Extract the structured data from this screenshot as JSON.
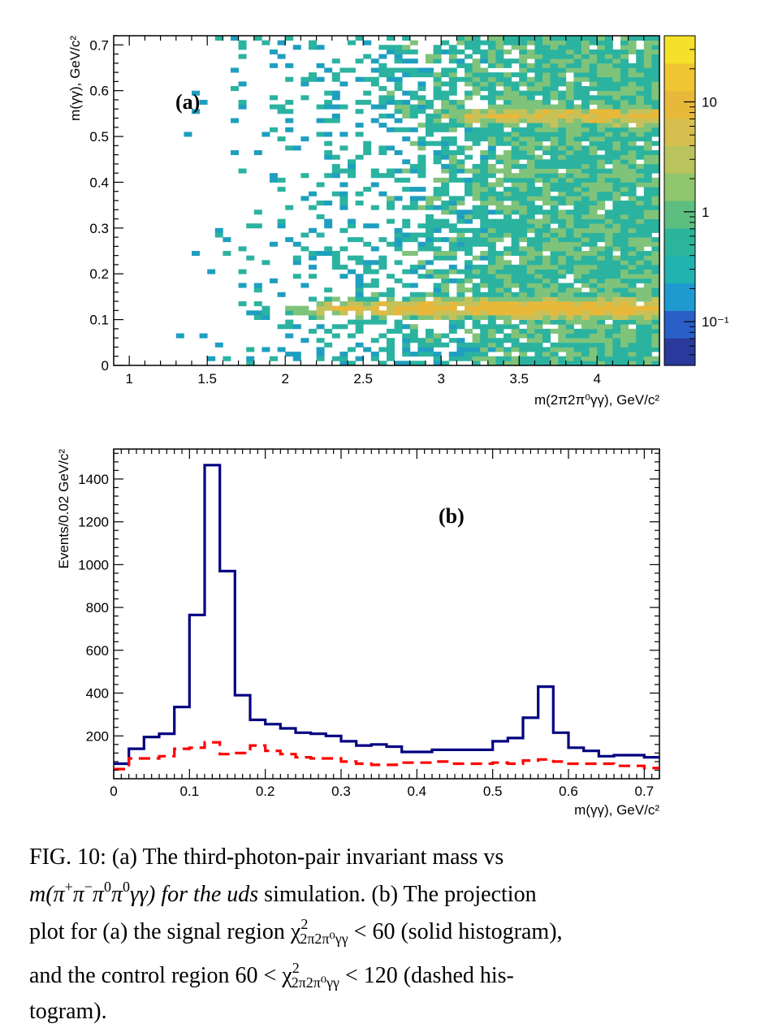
{
  "chart_data": [
    {
      "type": "heatmap",
      "panel_label": "(a)",
      "xlabel": "m(2π2π⁰γγ), GeV/c²",
      "ylabel": "m(γγ), GeV/c²",
      "xlim": [
        0.9,
        4.4
      ],
      "ylim": [
        0,
        0.72
      ],
      "xticks": [
        "1",
        "1.5",
        "2",
        "2.5",
        "3",
        "3.5",
        "4"
      ],
      "yticks": [
        "0",
        "0.1",
        "0.2",
        "0.3",
        "0.4",
        "0.5",
        "0.6",
        "0.7"
      ],
      "colorbar": {
        "scale": "log",
        "range": [
          0.04,
          40
        ],
        "tick_labels": [
          "10⁻¹",
          "1",
          "10"
        ]
      },
      "features": [
        {
          "description": "high-density band",
          "y_center": 0.125,
          "x_range": [
            2.0,
            4.4
          ],
          "peak_z": 15
        },
        {
          "description": "secondary band",
          "y_center": 0.545,
          "x_range": [
            3.0,
            4.4
          ],
          "peak_z": 8
        }
      ],
      "colors": [
        "#3b4cc0",
        "#1f9fc0",
        "#2bb3a0",
        "#7fc37a",
        "#c7c15a",
        "#e8b83a",
        "#f6e12a"
      ]
    },
    {
      "type": "line",
      "panel_label": "(b)",
      "xlabel": "m(γγ), GeV/c²",
      "ylabel": "Events/0.02 GeV/c²",
      "xlim": [
        0,
        0.72
      ],
      "ylim": [
        0,
        1540
      ],
      "xticks": [
        "0",
        "0.1",
        "0.2",
        "0.3",
        "0.4",
        "0.5",
        "0.6",
        "0.7"
      ],
      "yticks": [
        "200",
        "400",
        "600",
        "800",
        "1000",
        "1200",
        "1400"
      ],
      "bin_edges": [
        0,
        0.02,
        0.04,
        0.06,
        0.08,
        0.1,
        0.12,
        0.14,
        0.16,
        0.18,
        0.2,
        0.22,
        0.24,
        0.26,
        0.28,
        0.3,
        0.32,
        0.34,
        0.36,
        0.38,
        0.4,
        0.42,
        0.44,
        0.46,
        0.48,
        0.5,
        0.52,
        0.54,
        0.56,
        0.58,
        0.6,
        0.62,
        0.64,
        0.66,
        0.68,
        0.7,
        0.72
      ],
      "series": [
        {
          "style": "solid",
          "color": "#000080",
          "values": [
            70,
            140,
            195,
            210,
            335,
            765,
            1465,
            970,
            390,
            275,
            255,
            235,
            215,
            210,
            200,
            175,
            155,
            160,
            150,
            125,
            125,
            135,
            135,
            135,
            135,
            175,
            190,
            285,
            430,
            215,
            145,
            130,
            105,
            110,
            110,
            100
          ]
        },
        {
          "style": "dashed",
          "color": "#ff0000",
          "values": [
            45,
            95,
            95,
            105,
            140,
            145,
            170,
            115,
            120,
            155,
            130,
            115,
            100,
            95,
            95,
            80,
            70,
            65,
            65,
            75,
            75,
            80,
            70,
            70,
            70,
            75,
            70,
            85,
            90,
            80,
            70,
            70,
            70,
            60,
            60,
            50
          ]
        }
      ]
    }
  ],
  "caption": {
    "line1": "FIG. 10:  (a) The third-photon-pair invariant mass vs",
    "formula_head": "m(π",
    "formula_sup1": "+",
    "formula_mid1": "π",
    "formula_sup2": "−",
    "formula_mid2": "π",
    "formula_sup3": "0",
    "formula_mid3": "π",
    "formula_sup4": "0",
    "formula_tail": "γγ) for the ",
    "uds": "uds",
    "line2_rest": " simulation. (b) The projection",
    "line3_head": "plot for (a) the signal region χ",
    "chi_sup": "2",
    "chi_sub": "2π2π⁰γγ",
    "line3_tail": " < 60 (solid histogram),",
    "line4_head": "and the control region 60 < χ",
    "line4_tail": " < 120 (dashed his-",
    "line5": "togram)."
  }
}
